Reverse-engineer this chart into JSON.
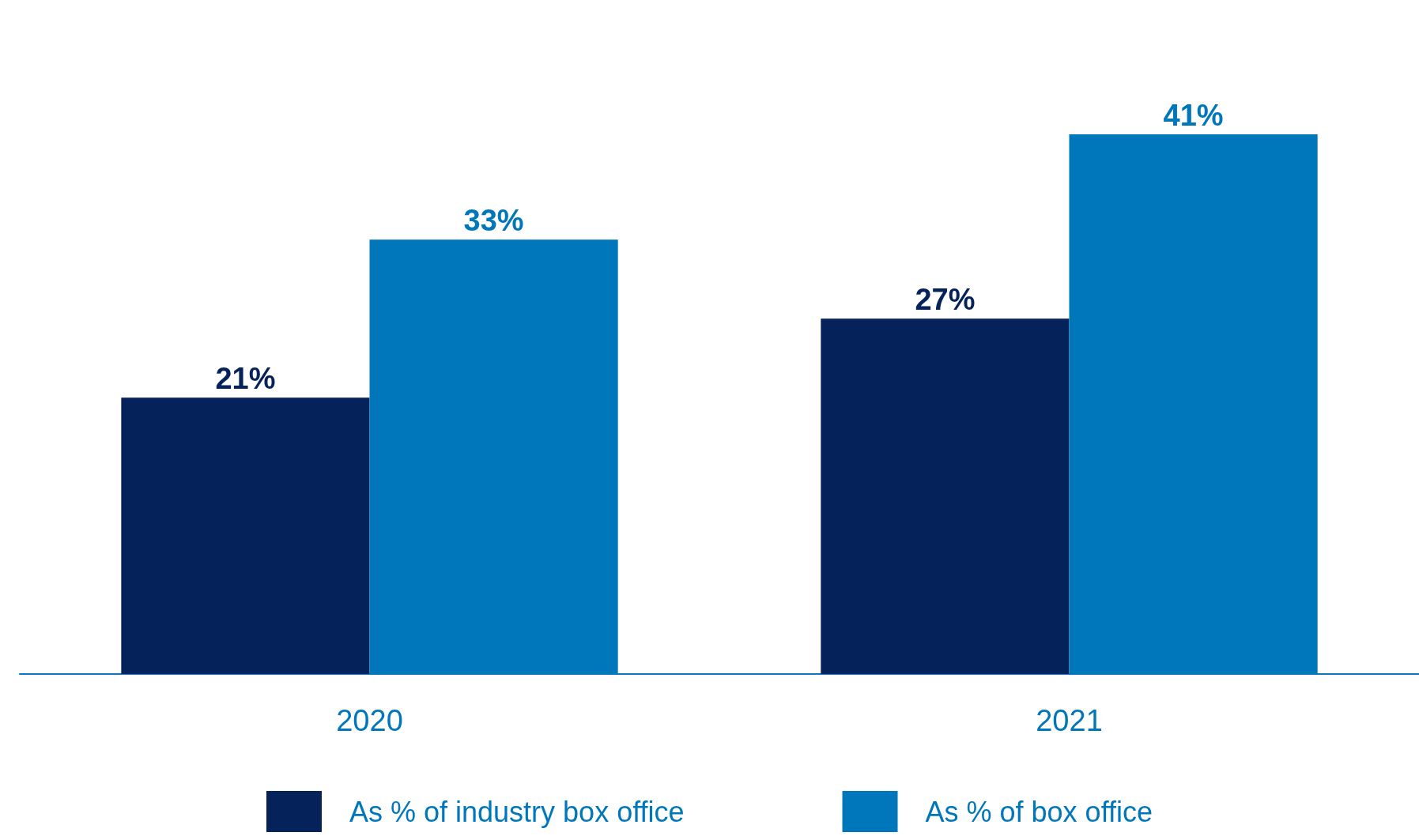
{
  "chart_data": {
    "type": "bar",
    "categories": [
      "2020",
      "2021"
    ],
    "series": [
      {
        "name": "As % of industry box office",
        "color": "#06225a",
        "values": [
          21,
          27
        ],
        "value_labels": [
          "21%",
          "27%"
        ]
      },
      {
        "name": "As % of box office",
        "color": "#0077bb",
        "values": [
          33,
          41
        ],
        "value_labels": [
          "33%",
          "41%"
        ]
      }
    ],
    "legend": "bottom"
  }
}
